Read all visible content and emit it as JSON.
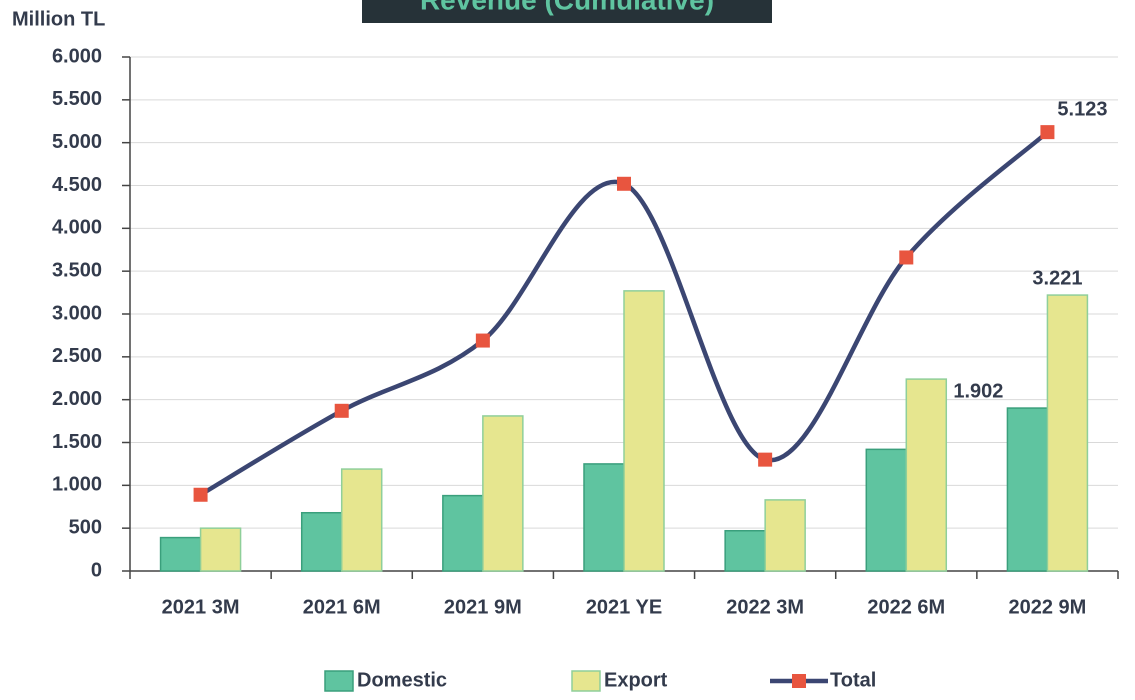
{
  "chart_data": {
    "type": "bar_line",
    "title": "Revenue (Cumulative)",
    "y_axis_label": "Million TL",
    "categories": [
      "2021 3M",
      "2021 6M",
      "2021 9M",
      "2021 YE",
      "2022 3M",
      "2022 6M",
      "2022 9M"
    ],
    "series": [
      {
        "name": "Domestic",
        "type": "bar",
        "color": "#5fc4a0",
        "values": [
          390,
          680,
          880,
          1250,
          470,
          1420,
          1902
        ],
        "value_labels": [
          null,
          null,
          null,
          null,
          null,
          null,
          "1.902"
        ]
      },
      {
        "name": "Export",
        "type": "bar",
        "color": "#e6e68f",
        "values": [
          500,
          1190,
          1810,
          3270,
          830,
          2240,
          3221
        ],
        "value_labels": [
          null,
          null,
          null,
          null,
          null,
          null,
          "3.221"
        ]
      },
      {
        "name": "Total",
        "type": "line",
        "color": "#3b4672",
        "marker_color": "#e8553f",
        "values": [
          890,
          1870,
          2690,
          4520,
          1300,
          3660,
          5123
        ],
        "value_labels": [
          null,
          null,
          null,
          null,
          null,
          null,
          "5.123"
        ]
      }
    ],
    "ylim": [
      0,
      6000
    ],
    "yticks": [
      0,
      500,
      {
        "value": 1000,
        "label": "1.000"
      },
      {
        "value": 1500,
        "label": "1.500"
      },
      {
        "value": 2000,
        "label": "2.000"
      },
      {
        "value": 2500,
        "label": "2.500"
      },
      {
        "value": 3000,
        "label": "3.000"
      },
      {
        "value": 3500,
        "label": "3.500"
      },
      {
        "value": 4000,
        "label": "4.000"
      },
      {
        "value": 4500,
        "label": "4.500"
      },
      {
        "value": 5000,
        "label": "5.000"
      },
      {
        "value": 5500,
        "label": "5.500"
      },
      {
        "value": 6000,
        "label": "6.000"
      }
    ],
    "grid": true,
    "legend": "bottom"
  }
}
